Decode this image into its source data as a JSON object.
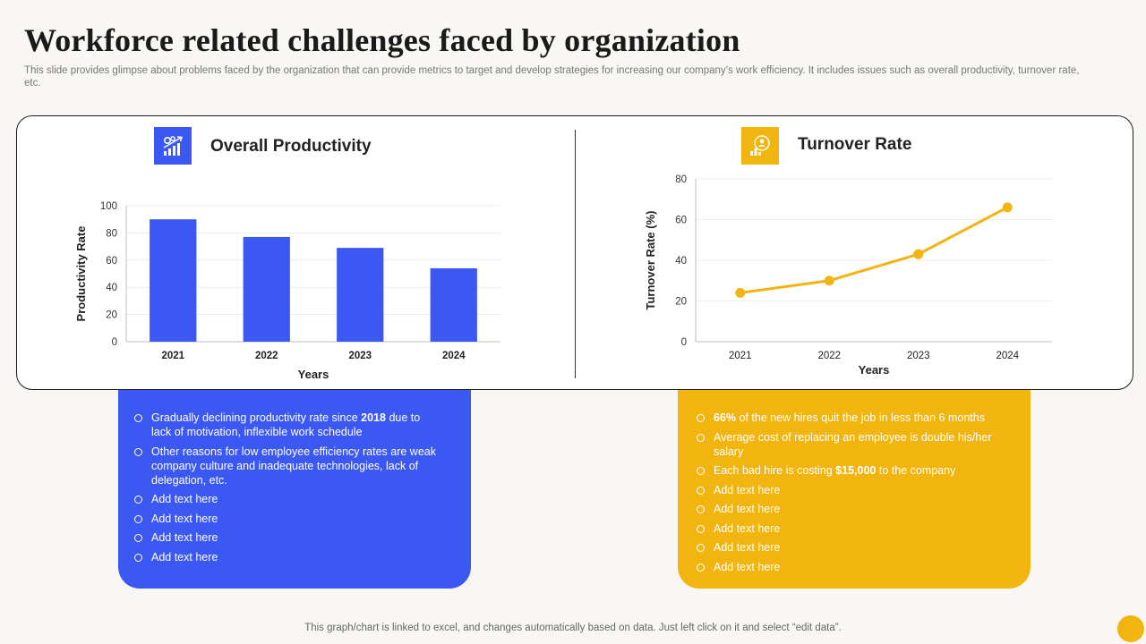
{
  "title": "Workforce related challenges faced by organization",
  "subtitle": "This slide provides glimpse about problems faced by the organization that can provide metrics to target and develop strategies for increasing our company’s work efficiency. It includes issues such as overall productivity, turnover rate, etc.",
  "colors": {
    "blue": "#3b58f2",
    "yellow": "#f2b40e"
  },
  "left": {
    "title": "Overall Productivity",
    "icon": "productivity-chart-icon",
    "bullets": [
      {
        "pre": "Gradually declining productivity rate since ",
        "bold": "2018",
        "post": " due to lack of motivation, inflexible work schedule"
      },
      {
        "pre": "Other reasons for low employee efficiency rates are weak company culture and inadequate technologies, lack of delegation, etc.",
        "bold": "",
        "post": ""
      },
      {
        "pre": "Add text here",
        "bold": "",
        "post": ""
      },
      {
        "pre": "Add text here",
        "bold": "",
        "post": ""
      },
      {
        "pre": "Add text here",
        "bold": "",
        "post": ""
      },
      {
        "pre": "Add text here",
        "bold": "",
        "post": ""
      }
    ]
  },
  "right": {
    "title": "Turnover Rate",
    "icon": "employee-turnover-icon",
    "bullets": [
      {
        "pre": "",
        "bold": "66%",
        "post": " of the new hires quit the job in less than 6 months"
      },
      {
        "pre": "Average cost of replacing an employee is double his/her salary",
        "bold": "",
        "post": ""
      },
      {
        "pre": "Each bad hire is costing ",
        "bold": "$15,000",
        "post": " to the company"
      },
      {
        "pre": "Add text here",
        "bold": "",
        "post": ""
      },
      {
        "pre": "Add text here",
        "bold": "",
        "post": ""
      },
      {
        "pre": "Add text here",
        "bold": "",
        "post": ""
      },
      {
        "pre": "Add text here",
        "bold": "",
        "post": ""
      },
      {
        "pre": "Add text here",
        "bold": "",
        "post": ""
      }
    ]
  },
  "chart_data": [
    {
      "type": "bar",
      "title": "Overall Productivity",
      "categories": [
        "2021",
        "2022",
        "2023",
        "2024"
      ],
      "values": [
        90,
        77,
        69,
        54
      ],
      "xlabel": "Years",
      "ylabel": "Productivity Rate",
      "ylim": [
        0,
        100
      ],
      "yticks": [
        0,
        20,
        40,
        60,
        80,
        100
      ],
      "grid": true,
      "color": "#3b58f2"
    },
    {
      "type": "line",
      "title": "Turnover Rate",
      "categories": [
        "2021",
        "2022",
        "2023",
        "2024"
      ],
      "values": [
        24,
        30,
        43,
        66
      ],
      "xlabel": "Years",
      "ylabel": "Turnover Rate (%)",
      "ylim": [
        0,
        80
      ],
      "yticks": [
        0,
        20,
        40,
        60,
        80
      ],
      "grid": true,
      "color": "#f2b40e"
    }
  ],
  "footnote": "This graph/chart is linked to excel,  and changes automatically based on data. Just left click on it and select “edit data”."
}
